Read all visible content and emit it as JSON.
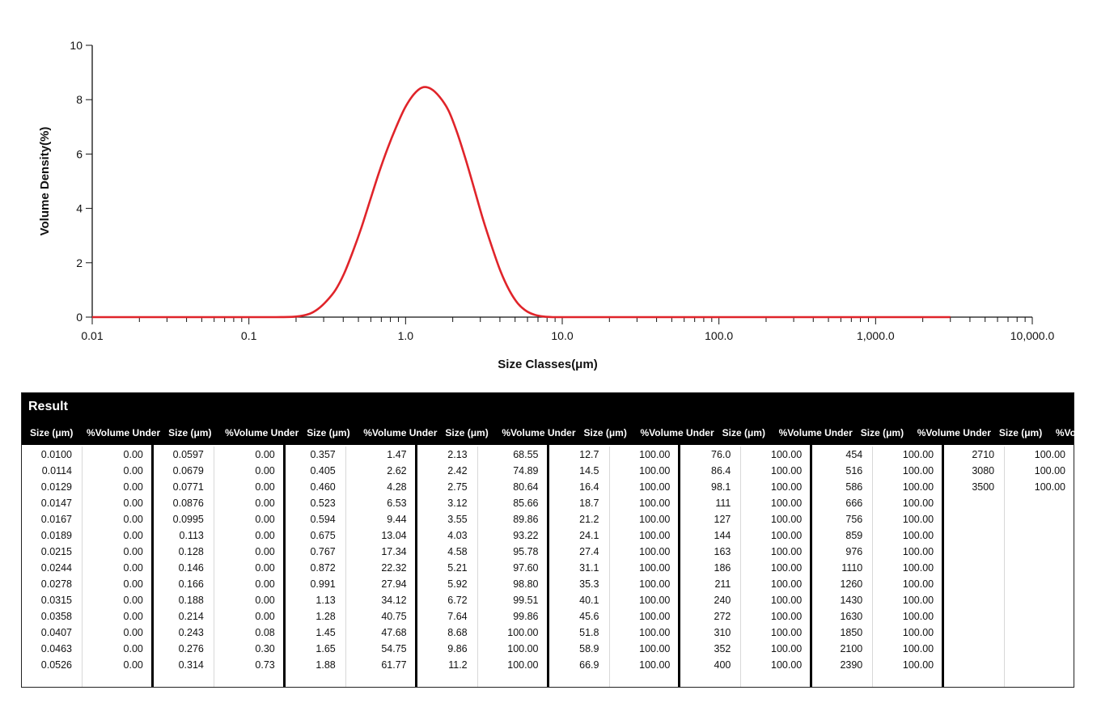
{
  "chart_data": {
    "type": "line",
    "xscale": "log",
    "xlim": [
      0.01,
      10000
    ],
    "ylim": [
      0,
      10
    ],
    "xlabel": "Size Classes(μm)",
    "ylabel": "Volume Density(%)",
    "x_tick_labels": [
      "0.01",
      "0.1",
      "1.0",
      "10.0",
      "100.0",
      "1,000.0",
      "10,000.0"
    ],
    "y_tick_labels": [
      "0",
      "2",
      "4",
      "6",
      "8",
      "10"
    ],
    "series": [
      {
        "color": "#e0242a",
        "x": [
          0.01,
          0.02,
          0.05,
          0.1,
          0.15,
          0.2,
          0.243,
          0.276,
          0.314,
          0.357,
          0.405,
          0.46,
          0.523,
          0.594,
          0.675,
          0.767,
          0.872,
          0.991,
          1.13,
          1.28,
          1.45,
          1.65,
          1.88,
          2.13,
          2.42,
          2.75,
          3.12,
          3.55,
          4.03,
          4.58,
          5.21,
          5.92,
          6.72,
          7.64,
          8.68,
          9.86,
          11.2,
          20,
          100,
          1000,
          3000
        ],
        "y": [
          0,
          0,
          0,
          0,
          0,
          0.02,
          0.12,
          0.3,
          0.6,
          1.0,
          1.6,
          2.4,
          3.3,
          4.3,
          5.3,
          6.2,
          7.0,
          7.7,
          8.2,
          8.45,
          8.4,
          8.1,
          7.6,
          6.8,
          5.8,
          4.7,
          3.6,
          2.6,
          1.7,
          1.0,
          0.5,
          0.22,
          0.08,
          0.02,
          0.0,
          0,
          0,
          0,
          0,
          0,
          0
        ]
      }
    ]
  },
  "result": {
    "title": "Result",
    "header_size": "Size (μm)",
    "header_volume": "%Volume Under",
    "groups": [
      {
        "sizes": [
          "0.0100",
          "0.0114",
          "0.0129",
          "0.0147",
          "0.0167",
          "0.0189",
          "0.0215",
          "0.0244",
          "0.0278",
          "0.0315",
          "0.0358",
          "0.0407",
          "0.0463",
          "0.0526"
        ],
        "volumes": [
          "0.00",
          "0.00",
          "0.00",
          "0.00",
          "0.00",
          "0.00",
          "0.00",
          "0.00",
          "0.00",
          "0.00",
          "0.00",
          "0.00",
          "0.00",
          "0.00"
        ]
      },
      {
        "sizes": [
          "0.0597",
          "0.0679",
          "0.0771",
          "0.0876",
          "0.0995",
          "0.113",
          "0.128",
          "0.146",
          "0.166",
          "0.188",
          "0.214",
          "0.243",
          "0.276",
          "0.314"
        ],
        "volumes": [
          "0.00",
          "0.00",
          "0.00",
          "0.00",
          "0.00",
          "0.00",
          "0.00",
          "0.00",
          "0.00",
          "0.00",
          "0.00",
          "0.08",
          "0.30",
          "0.73"
        ]
      },
      {
        "sizes": [
          "0.357",
          "0.405",
          "0.460",
          "0.523",
          "0.594",
          "0.675",
          "0.767",
          "0.872",
          "0.991",
          "1.13",
          "1.28",
          "1.45",
          "1.65",
          "1.88"
        ],
        "volumes": [
          "1.47",
          "2.62",
          "4.28",
          "6.53",
          "9.44",
          "13.04",
          "17.34",
          "22.32",
          "27.94",
          "34.12",
          "40.75",
          "47.68",
          "54.75",
          "61.77"
        ]
      },
      {
        "sizes": [
          "2.13",
          "2.42",
          "2.75",
          "3.12",
          "3.55",
          "4.03",
          "4.58",
          "5.21",
          "5.92",
          "6.72",
          "7.64",
          "8.68",
          "9.86",
          "11.2"
        ],
        "volumes": [
          "68.55",
          "74.89",
          "80.64",
          "85.66",
          "89.86",
          "93.22",
          "95.78",
          "97.60",
          "98.80",
          "99.51",
          "99.86",
          "100.00",
          "100.00",
          "100.00"
        ]
      },
      {
        "sizes": [
          "12.7",
          "14.5",
          "16.4",
          "18.7",
          "21.2",
          "24.1",
          "27.4",
          "31.1",
          "35.3",
          "40.1",
          "45.6",
          "51.8",
          "58.9",
          "66.9"
        ],
        "volumes": [
          "100.00",
          "100.00",
          "100.00",
          "100.00",
          "100.00",
          "100.00",
          "100.00",
          "100.00",
          "100.00",
          "100.00",
          "100.00",
          "100.00",
          "100.00",
          "100.00"
        ]
      },
      {
        "sizes": [
          "76.0",
          "86.4",
          "98.1",
          "111",
          "127",
          "144",
          "163",
          "186",
          "211",
          "240",
          "272",
          "310",
          "352",
          "400"
        ],
        "volumes": [
          "100.00",
          "100.00",
          "100.00",
          "100.00",
          "100.00",
          "100.00",
          "100.00",
          "100.00",
          "100.00",
          "100.00",
          "100.00",
          "100.00",
          "100.00",
          "100.00"
        ]
      },
      {
        "sizes": [
          "454",
          "516",
          "586",
          "666",
          "756",
          "859",
          "976",
          "1110",
          "1260",
          "1430",
          "1630",
          "1850",
          "2100",
          "2390"
        ],
        "volumes": [
          "100.00",
          "100.00",
          "100.00",
          "100.00",
          "100.00",
          "100.00",
          "100.00",
          "100.00",
          "100.00",
          "100.00",
          "100.00",
          "100.00",
          "100.00",
          "100.00"
        ]
      },
      {
        "sizes": [
          "2710",
          "3080",
          "3500"
        ],
        "volumes": [
          "100.00",
          "100.00",
          "100.00"
        ]
      }
    ]
  }
}
